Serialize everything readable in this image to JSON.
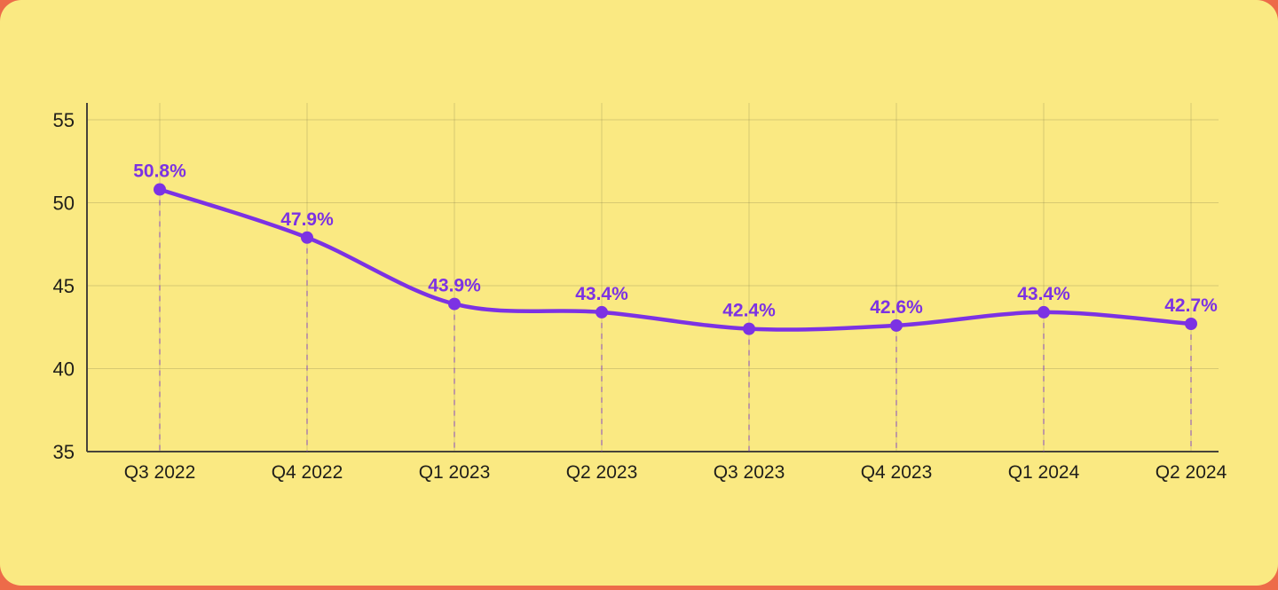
{
  "page": {
    "background_color": "#ED6B49",
    "card_color": "#FAE982"
  },
  "chart_data": {
    "type": "line",
    "title": "",
    "xlabel": "",
    "ylabel": "",
    "categories": [
      "Q3 2022",
      "Q4 2022",
      "Q1 2023",
      "Q2 2023",
      "Q3 2023",
      "Q4 2023",
      "Q1 2024",
      "Q2 2024"
    ],
    "series": [
      {
        "name": "",
        "values": [
          50.8,
          47.9,
          43.9,
          43.4,
          42.4,
          42.6,
          43.4,
          42.7
        ]
      }
    ],
    "point_labels": [
      "50.8%",
      "47.9%",
      "43.9%",
      "43.4%",
      "42.4%",
      "42.6%",
      "43.4%",
      "42.7%"
    ],
    "y_ticks": [
      55,
      50,
      45,
      40,
      35
    ],
    "ylim": [
      35,
      55
    ],
    "grid": true,
    "legend": "none",
    "line_shape": "smooth",
    "colors": {
      "line": "#7C32E3",
      "point": "#7C32E3",
      "point_label": "#7C32E3",
      "dropline": "rgba(124,50,227,0.38)",
      "gridline": "rgba(92,86,58,0.22)",
      "axis": "#47433A",
      "tick_label": "#1F1E1A"
    }
  }
}
